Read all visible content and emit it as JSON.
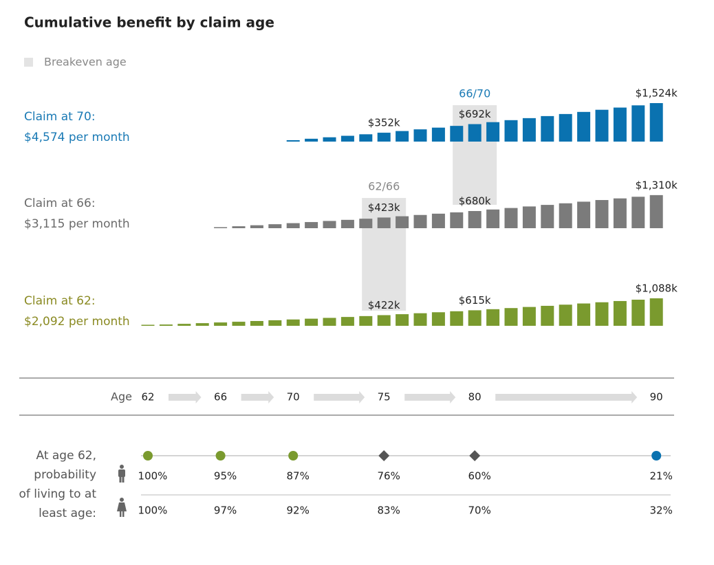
{
  "chart_data": {
    "type": "bar",
    "title": "Cumulative benefit by claim age",
    "legend": {
      "label": "Breakeven age",
      "color": "#e3e3e3"
    },
    "x": [
      62,
      63,
      64,
      65,
      66,
      67,
      68,
      69,
      70,
      71,
      72,
      73,
      74,
      75,
      76,
      77,
      78,
      79,
      80,
      81,
      82,
      83,
      84,
      85,
      86,
      87,
      88,
      89,
      90
    ],
    "series": [
      {
        "name": "Claim at 70:",
        "monthly": "$4,574 per month",
        "color": "#0a72b0",
        "label_color": "#1a7ab5",
        "values": [
          null,
          null,
          null,
          null,
          null,
          null,
          null,
          null,
          56,
          113,
          171,
          230,
          290,
          352,
          418,
          485,
          553,
          622,
          692,
          770,
          849,
          929,
          1010,
          1092,
          1175,
          1260,
          1347,
          1435,
          1524
        ],
        "value_labels": [
          null,
          null,
          null,
          null,
          null,
          null,
          null,
          null,
          null,
          null,
          null,
          null,
          null,
          "$352k",
          null,
          null,
          null,
          null,
          "$692k",
          null,
          null,
          null,
          null,
          null,
          null,
          null,
          null,
          null,
          "$1,524k"
        ]
      },
      {
        "name": "Claim at 66:",
        "monthly": "$3,115 per month",
        "color": "#7b7b7b",
        "label_color": "#6a6a6a",
        "values": [
          null,
          null,
          null,
          null,
          38,
          77,
          117,
          158,
          200,
          243,
          287,
          331,
          376,
          423,
          473,
          524,
          575,
          627,
          680,
          740,
          800,
          861,
          923,
          986,
          1050,
          1115,
          1180,
          1245,
          1310
        ],
        "value_labels": [
          null,
          null,
          null,
          null,
          null,
          null,
          null,
          null,
          null,
          null,
          null,
          null,
          null,
          "$423k",
          null,
          null,
          null,
          null,
          "$680k",
          null,
          null,
          null,
          null,
          null,
          null,
          null,
          null,
          null,
          "$1,310k"
        ]
      },
      {
        "name": "Claim at 62:",
        "monthly": "$2,092 per month",
        "color": "#7a9a2e",
        "label_color": "#8a8a22",
        "values": [
          25,
          51,
          78,
          105,
          133,
          161,
          190,
          220,
          251,
          282,
          314,
          350,
          385,
          422,
          460,
          498,
          537,
          576,
          615,
          658,
          702,
          746,
          791,
          837,
          884,
          932,
          981,
          1034,
          1088
        ],
        "value_labels": [
          null,
          null,
          null,
          null,
          null,
          null,
          null,
          null,
          null,
          null,
          null,
          null,
          null,
          "$422k",
          null,
          null,
          null,
          null,
          "$615k",
          null,
          null,
          null,
          null,
          null,
          null,
          null,
          null,
          null,
          "$1,088k"
        ]
      }
    ],
    "breakeven": [
      {
        "label": "66/70",
        "age": 80,
        "color": "#1a7ab5"
      },
      {
        "label": "62/66",
        "age": 75,
        "color": "#888888"
      }
    ],
    "age_label": "Age",
    "age_ticks": [
      62,
      66,
      70,
      75,
      80,
      90
    ]
  },
  "probability": {
    "caption": [
      "At age 62,",
      "probability",
      "of living to at",
      "least age:"
    ],
    "markers": [
      {
        "shape": "circle",
        "color": "#7a9a2e"
      },
      {
        "shape": "circle",
        "color": "#7a9a2e"
      },
      {
        "shape": "circle",
        "color": "#7a9a2e"
      },
      {
        "shape": "diamond",
        "color": "#555555"
      },
      {
        "shape": "diamond",
        "color": "#555555"
      },
      {
        "shape": "circle",
        "color": "#0a72b0"
      }
    ],
    "male": [
      "100%",
      "95%",
      "87%",
      "76%",
      "60%",
      "21%"
    ],
    "female": [
      "100%",
      "97%",
      "92%",
      "83%",
      "70%",
      "32%"
    ]
  }
}
